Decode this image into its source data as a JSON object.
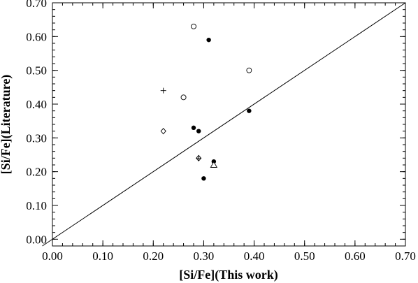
{
  "chart_data": {
    "type": "scatter",
    "xlabel": "[Si/Fe](This work)",
    "ylabel": "[Si/Fe](Literature)",
    "xlim": [
      0.0,
      0.7
    ],
    "ylim": [
      -0.02,
      0.7
    ],
    "x_ticks": [
      {
        "value": 0.0,
        "label": "0.00"
      },
      {
        "value": 0.1,
        "label": "0.10"
      },
      {
        "value": 0.2,
        "label": "0.20"
      },
      {
        "value": 0.3,
        "label": "0.30"
      },
      {
        "value": 0.4,
        "label": "0.40"
      },
      {
        "value": 0.5,
        "label": "0.50"
      },
      {
        "value": 0.6,
        "label": "0.60"
      },
      {
        "value": 0.7,
        "label": "0.70"
      }
    ],
    "y_ticks": [
      {
        "value": 0.0,
        "label": "0.00"
      },
      {
        "value": 0.1,
        "label": "0.10"
      },
      {
        "value": 0.2,
        "label": "0.20"
      },
      {
        "value": 0.3,
        "label": "0.30"
      },
      {
        "value": 0.4,
        "label": "0.40"
      },
      {
        "value": 0.5,
        "label": "0.50"
      },
      {
        "value": 0.6,
        "label": "0.60"
      },
      {
        "value": 0.7,
        "label": "0.70"
      }
    ],
    "reference_line": {
      "from": [
        0.0,
        0.0
      ],
      "to": [
        0.7,
        0.7
      ]
    },
    "grid": false,
    "series": [
      {
        "marker": "filled-circle",
        "points": [
          [
            0.31,
            0.59
          ],
          [
            0.39,
            0.38
          ],
          [
            0.28,
            0.33
          ],
          [
            0.29,
            0.32
          ],
          [
            0.32,
            0.23
          ],
          [
            0.3,
            0.18
          ]
        ]
      },
      {
        "marker": "open-circle",
        "points": [
          [
            0.28,
            0.63
          ],
          [
            0.39,
            0.5
          ],
          [
            0.26,
            0.42
          ]
        ]
      },
      {
        "marker": "plus",
        "points": [
          [
            0.22,
            0.44
          ]
        ]
      },
      {
        "marker": "diamond",
        "points": [
          [
            0.22,
            0.32
          ]
        ]
      },
      {
        "marker": "diamond-plus",
        "points": [
          [
            0.29,
            0.24
          ]
        ]
      },
      {
        "marker": "triangle",
        "points": [
          [
            0.32,
            0.22
          ]
        ]
      }
    ]
  }
}
